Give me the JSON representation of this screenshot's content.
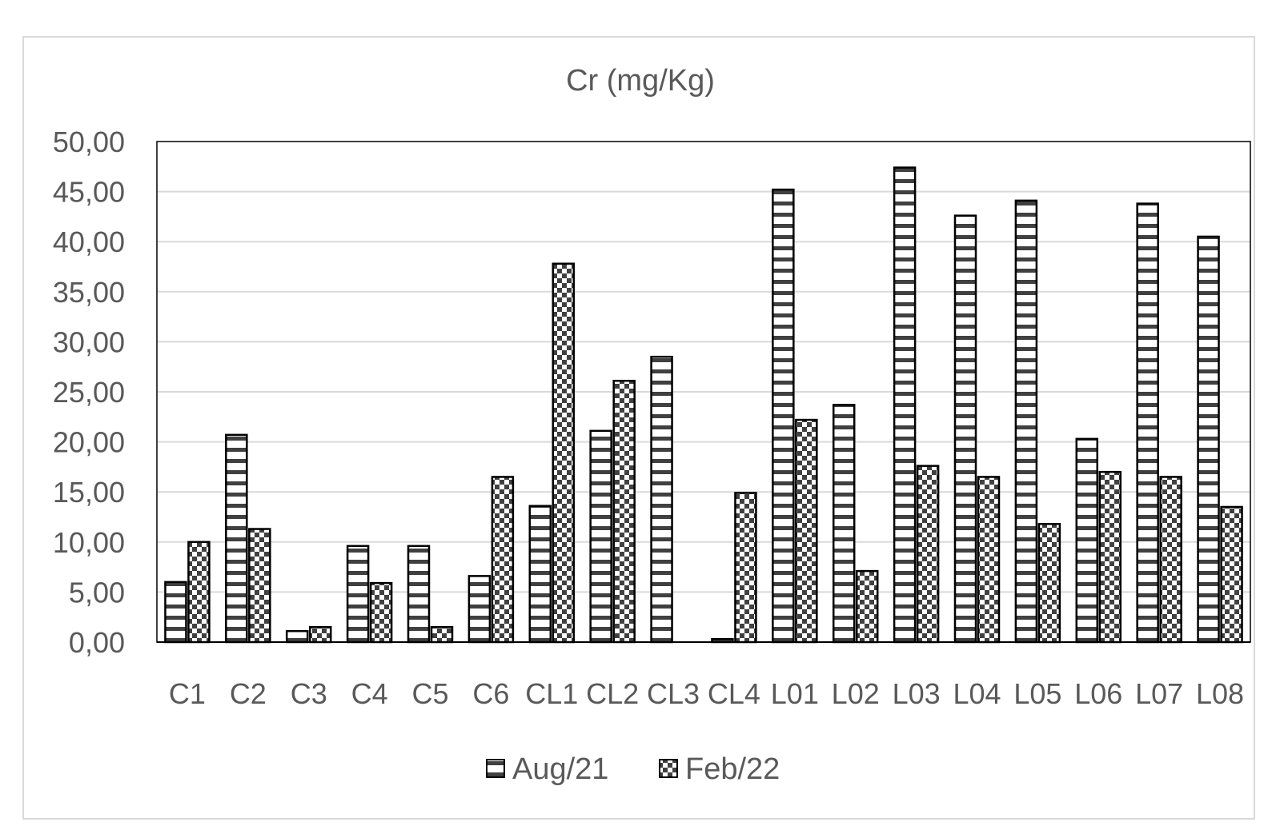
{
  "chart_data": {
    "type": "bar",
    "title": "Cr (mg/Kg)",
    "xlabel": "",
    "ylabel": "",
    "ylim": [
      0,
      50
    ],
    "y_ticks": [
      "0,00",
      "5,00",
      "10,00",
      "15,00",
      "20,00",
      "25,00",
      "30,00",
      "35,00",
      "40,00",
      "45,00",
      "50,00"
    ],
    "y_tick_values": [
      0,
      5,
      10,
      15,
      20,
      25,
      30,
      35,
      40,
      45,
      50
    ],
    "grid": true,
    "legend_position": "bottom",
    "categories": [
      "C1",
      "C2",
      "C3",
      "C4",
      "C5",
      "C6",
      "CL1",
      "CL2",
      "CL3",
      "CL4",
      "L01",
      "L02",
      "L03",
      "L04",
      "L05",
      "L06",
      "L07",
      "L08"
    ],
    "series": [
      {
        "name": "Aug/21",
        "pattern": "horizontal-stripes",
        "values": [
          6.0,
          20.7,
          1.1,
          9.6,
          9.6,
          6.6,
          13.6,
          21.1,
          28.5,
          0.3,
          45.2,
          23.7,
          47.4,
          42.6,
          44.1,
          20.3,
          43.8,
          40.5
        ]
      },
      {
        "name": "Feb/22",
        "pattern": "checkered",
        "values": [
          10.0,
          11.3,
          1.5,
          5.9,
          1.5,
          16.5,
          37.8,
          26.1,
          0.0,
          14.9,
          22.2,
          7.1,
          17.6,
          16.5,
          11.8,
          17.0,
          16.5,
          13.5
        ]
      }
    ],
    "colors": {
      "bar_stroke": "#000000",
      "stripe": "#595959",
      "grid": "#d9d9d9",
      "text": "#595959"
    }
  }
}
